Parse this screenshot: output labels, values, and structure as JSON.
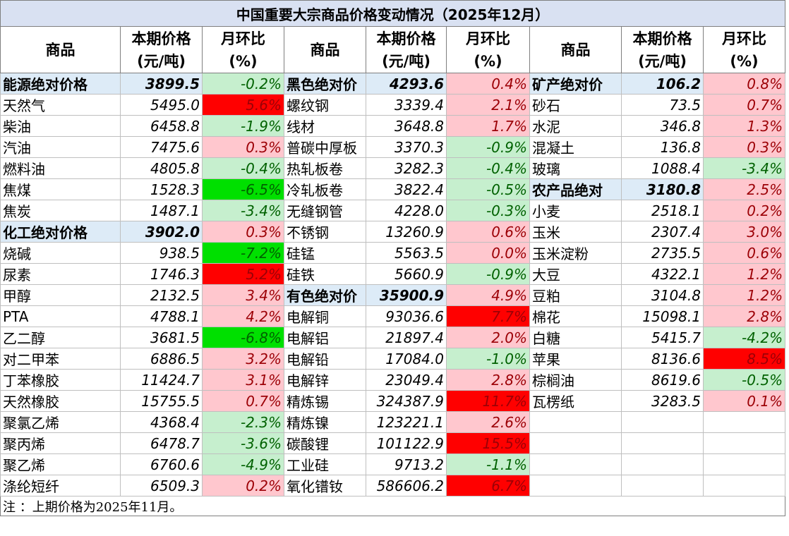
{
  "title": "中国重要大宗商品价格变动情况（2025年12月）",
  "headers": {
    "name": "商品",
    "price": "本期价格\n(元/吨)",
    "change": "月环比\n(%)"
  },
  "note": "注 ：上期价格为2025年11月。",
  "colors": {
    "title_bg": "#d9e1f2",
    "group_bg": "#ddebf7",
    "up_bg": "#ffc7ce",
    "up_text": "#9c0006",
    "down_bg": "#c6efce",
    "down_text": "#006100",
    "up_strong_bg": "#ff0000",
    "down_strong_bg": "#00e000"
  },
  "rows": [
    [
      {
        "name": "能源绝对价格",
        "price": "3899.5",
        "change": "-0.2%",
        "style": "down",
        "group": true
      },
      {
        "name": "黑色绝对价",
        "price": "4293.6",
        "change": "0.4%",
        "style": "up",
        "group": true
      },
      {
        "name": "矿产绝对价",
        "price": "106.2",
        "change": "0.8%",
        "style": "up",
        "group": true
      }
    ],
    [
      {
        "name": "天然气",
        "price": "5495.0",
        "change": "5.6%",
        "style": "up-strong"
      },
      {
        "name": "螺纹钢",
        "price": "3339.4",
        "change": "2.1%",
        "style": "up"
      },
      {
        "name": "砂石",
        "price": "73.5",
        "change": "0.7%",
        "style": "up"
      }
    ],
    [
      {
        "name": "柴油",
        "price": "6458.8",
        "change": "-1.9%",
        "style": "down"
      },
      {
        "name": "线材",
        "price": "3648.8",
        "change": "1.7%",
        "style": "up"
      },
      {
        "name": "水泥",
        "price": "346.8",
        "change": "1.3%",
        "style": "up"
      }
    ],
    [
      {
        "name": "汽油",
        "price": "7475.6",
        "change": "0.3%",
        "style": "up"
      },
      {
        "name": "普碳中厚板",
        "price": "3370.3",
        "change": "-0.9%",
        "style": "down"
      },
      {
        "name": "混凝土",
        "price": "136.8",
        "change": "0.3%",
        "style": "up"
      }
    ],
    [
      {
        "name": "燃料油",
        "price": "4805.8",
        "change": "-0.4%",
        "style": "down"
      },
      {
        "name": "热轧板卷",
        "price": "3282.3",
        "change": "-0.4%",
        "style": "down"
      },
      {
        "name": "玻璃",
        "price": "1088.4",
        "change": "-3.4%",
        "style": "down"
      }
    ],
    [
      {
        "name": "焦煤",
        "price": "1528.3",
        "change": "-6.5%",
        "style": "down-strong"
      },
      {
        "name": "冷轧板卷",
        "price": "3822.4",
        "change": "-0.5%",
        "style": "down"
      },
      {
        "name": "农产品绝对",
        "price": "3180.8",
        "change": "2.5%",
        "style": "up",
        "group": true
      }
    ],
    [
      {
        "name": "焦炭",
        "price": "1487.1",
        "change": "-3.4%",
        "style": "down"
      },
      {
        "name": "无缝钢管",
        "price": "4228.0",
        "change": "-0.3%",
        "style": "down"
      },
      {
        "name": "小麦",
        "price": "2518.1",
        "change": "0.2%",
        "style": "up"
      }
    ],
    [
      {
        "name": "化工绝对价格",
        "price": "3902.0",
        "change": "0.3%",
        "style": "up",
        "group": true
      },
      {
        "name": "不锈钢",
        "price": "13260.9",
        "change": "0.6%",
        "style": "up"
      },
      {
        "name": "玉米",
        "price": "2307.4",
        "change": "3.0%",
        "style": "up"
      }
    ],
    [
      {
        "name": "烧碱",
        "price": "938.5",
        "change": "-7.2%",
        "style": "down-strong"
      },
      {
        "name": "硅锰",
        "price": "5563.5",
        "change": "0.0%",
        "style": "zero"
      },
      {
        "name": "玉米淀粉",
        "price": "2735.5",
        "change": "0.6%",
        "style": "up"
      }
    ],
    [
      {
        "name": "尿素",
        "price": "1746.3",
        "change": "5.2%",
        "style": "up-strong"
      },
      {
        "name": "硅铁",
        "price": "5660.9",
        "change": "-0.9%",
        "style": "down"
      },
      {
        "name": "大豆",
        "price": "4322.1",
        "change": "1.2%",
        "style": "up"
      }
    ],
    [
      {
        "name": "甲醇",
        "price": "2132.5",
        "change": "3.4%",
        "style": "up"
      },
      {
        "name": "有色绝对价",
        "price": "35900.9",
        "change": "4.9%",
        "style": "up",
        "group": true
      },
      {
        "name": "豆粕",
        "price": "3104.8",
        "change": "1.2%",
        "style": "up"
      }
    ],
    [
      {
        "name": "PTA",
        "price": "4788.1",
        "change": "4.2%",
        "style": "up"
      },
      {
        "name": "电解铜",
        "price": "93036.6",
        "change": "7.7%",
        "style": "up-strong"
      },
      {
        "name": "棉花",
        "price": "15098.1",
        "change": "2.8%",
        "style": "up"
      }
    ],
    [
      {
        "name": "乙二醇",
        "price": "3681.5",
        "change": "-6.8%",
        "style": "down-strong"
      },
      {
        "name": "电解铝",
        "price": "21897.4",
        "change": "2.0%",
        "style": "up"
      },
      {
        "name": "白糖",
        "price": "5415.7",
        "change": "-4.2%",
        "style": "down"
      }
    ],
    [
      {
        "name": "对二甲苯",
        "price": "6886.5",
        "change": "3.2%",
        "style": "up"
      },
      {
        "name": "电解铅",
        "price": "17084.0",
        "change": "-1.0%",
        "style": "down"
      },
      {
        "name": "苹果",
        "price": "8136.6",
        "change": "8.5%",
        "style": "up-strong"
      }
    ],
    [
      {
        "name": "丁苯橡胶",
        "price": "11424.7",
        "change": "3.1%",
        "style": "up"
      },
      {
        "name": "电解锌",
        "price": "23049.4",
        "change": "2.8%",
        "style": "up"
      },
      {
        "name": "棕榈油",
        "price": "8619.6",
        "change": "-0.5%",
        "style": "down"
      }
    ],
    [
      {
        "name": "天然橡胶",
        "price": "15755.5",
        "change": "0.7%",
        "style": "up"
      },
      {
        "name": "精炼锡",
        "price": "324387.9",
        "change": "11.7%",
        "style": "up-strong"
      },
      {
        "name": "瓦楞纸",
        "price": "3283.5",
        "change": "0.1%",
        "style": "up"
      }
    ],
    [
      {
        "name": "聚氯乙烯",
        "price": "4368.4",
        "change": "-2.3%",
        "style": "down"
      },
      {
        "name": "精炼镍",
        "price": "123221.1",
        "change": "2.6%",
        "style": "up"
      },
      null
    ],
    [
      {
        "name": "聚丙烯",
        "price": "6478.7",
        "change": "-3.6%",
        "style": "down"
      },
      {
        "name": "碳酸锂",
        "price": "101122.9",
        "change": "15.5%",
        "style": "up-strong"
      },
      null
    ],
    [
      {
        "name": "聚乙烯",
        "price": "6760.6",
        "change": "-4.9%",
        "style": "down"
      },
      {
        "name": "工业硅",
        "price": "9713.2",
        "change": "-1.1%",
        "style": "down"
      },
      null
    ],
    [
      {
        "name": "涤纶短纤",
        "price": "6509.3",
        "change": "0.2%",
        "style": "up"
      },
      {
        "name": "氧化镨钕",
        "price": "586606.2",
        "change": "6.7%",
        "style": "up-strong"
      },
      null
    ]
  ]
}
